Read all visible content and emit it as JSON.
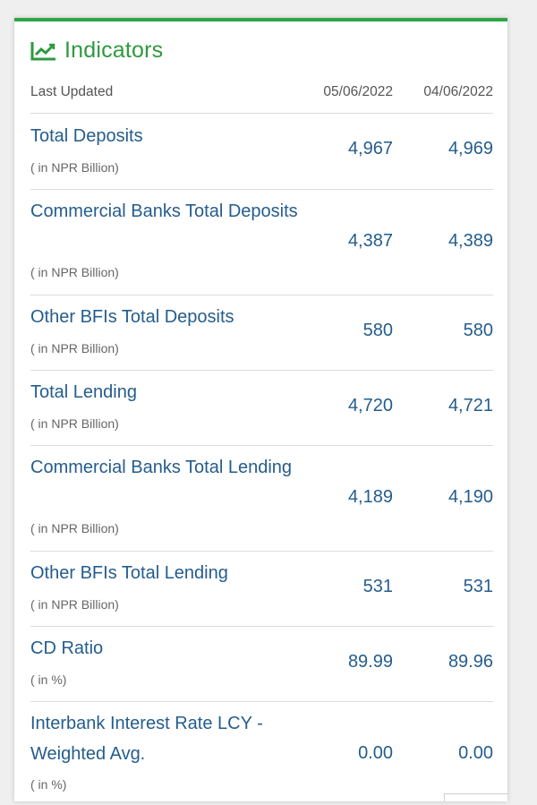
{
  "widget": {
    "title": "Indicators",
    "icon": "line-chart-icon",
    "accent_color": "#2ea644",
    "title_color": "#2d9a3e",
    "value_color": "#245d8d"
  },
  "table": {
    "label": "Last Updated",
    "dates": [
      "05/06/2022",
      "04/06/2022"
    ],
    "rows": [
      {
        "name": "Total Deposits",
        "unit": "( in NPR Billion)",
        "v1": "4,967",
        "v2": "4,969"
      },
      {
        "name": "Commercial Banks Total Deposits",
        "unit": "( in NPR Billion)",
        "v1": "4,387",
        "v2": "4,389"
      },
      {
        "name": "Other BFIs Total Deposits",
        "unit": "( in NPR Billion)",
        "v1": "580",
        "v2": "580"
      },
      {
        "name": "Total Lending",
        "unit": "( in NPR Billion)",
        "v1": "4,720",
        "v2": "4,721"
      },
      {
        "name": "Commercial Banks Total Lending",
        "unit": "( in NPR Billion)",
        "v1": "4,189",
        "v2": "4,190"
      },
      {
        "name": "Other BFIs Total Lending",
        "unit": "( in NPR Billion)",
        "v1": "531",
        "v2": "531"
      },
      {
        "name": "CD Ratio",
        "unit": "( in %)",
        "v1": "89.99",
        "v2": "89.96"
      },
      {
        "name": "Interbank Interest Rate LCY - Weighted Avg.",
        "unit": "( in %)",
        "v1": "0.00",
        "v2": "0.00"
      }
    ]
  }
}
